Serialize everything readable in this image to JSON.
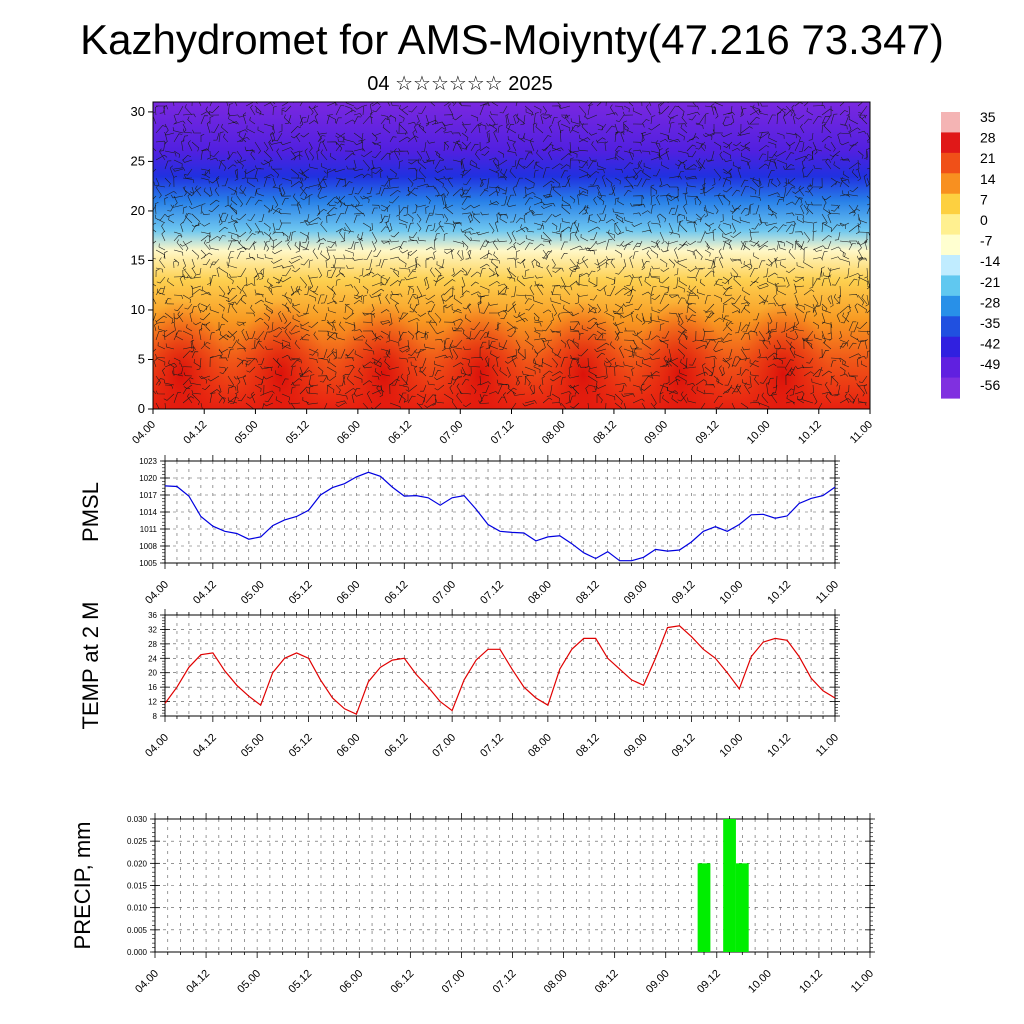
{
  "title": "Kazhydromet for AMS-Moiynty(47.216 73.347)",
  "subtitle": "04 ☆☆☆☆☆☆ 2025",
  "chart_data": [
    {
      "type": "heatmap",
      "name": "cross-section",
      "x_ticks": [
        "04.00",
        "04.12",
        "05.00",
        "05.12",
        "06.00",
        "06.12",
        "07.00",
        "07.12",
        "08.00",
        "08.12",
        "09.00",
        "09.12",
        "10.00",
        "10.12",
        "11.00"
      ],
      "y_ticks": [
        "0",
        "5",
        "10",
        "15",
        "20",
        "25",
        "30"
      ],
      "ylim": [
        0,
        31
      ],
      "colorbar": {
        "labels": [
          "35",
          "28",
          "21",
          "14",
          "7",
          "0",
          "-7",
          "-14",
          "-21",
          "-28",
          "-35",
          "-42",
          "-49",
          "-56"
        ],
        "colors": [
          "#f4b4b4",
          "#e01818",
          "#f05018",
          "#f89020",
          "#fdd040",
          "#fff090",
          "#ffffd0",
          "#c0ecff",
          "#60c8f0",
          "#2890e8",
          "#2050e0",
          "#3020e0",
          "#6020e0",
          "#8030e0"
        ]
      },
      "bands": [
        {
          "z": 0,
          "color": "#e82010"
        },
        {
          "z": 5,
          "color": "#f05818"
        },
        {
          "z": 9,
          "color": "#f89a22"
        },
        {
          "z": 13,
          "color": "#fdd050"
        },
        {
          "z": 16,
          "color": "#fff8c8"
        },
        {
          "z": 18,
          "color": "#70c8f0"
        },
        {
          "z": 21,
          "color": "#2880e8"
        },
        {
          "z": 23.5,
          "color": "#2030e0"
        },
        {
          "z": 26,
          "color": "#5020e0"
        },
        {
          "z": 31,
          "color": "#7a28e0"
        }
      ],
      "warm_times": [
        0.55,
        2.5,
        4.5,
        6.4,
        8.4,
        10.3,
        12.3
      ]
    },
    {
      "type": "line",
      "ylabel": "PMSL",
      "y_ticks": [
        "1005",
        "1008",
        "1011",
        "1014",
        "1017",
        "1020",
        "1023"
      ],
      "ylim": [
        1005,
        1023
      ],
      "x_ticks": [
        "04.00",
        "04.12",
        "05.00",
        "05.12",
        "06.00",
        "06.12",
        "07.00",
        "07.12",
        "08.00",
        "08.12",
        "09.00",
        "09.12",
        "10.00",
        "10.12",
        "11.00"
      ],
      "color": "#0000e0",
      "x": [
        0,
        1,
        2,
        3,
        4,
        5,
        6,
        7,
        8,
        9,
        10,
        11,
        12,
        13,
        14,
        15,
        16,
        17,
        18,
        19,
        20,
        21,
        22,
        23,
        24,
        25,
        26,
        27,
        28,
        29,
        30,
        31,
        32,
        33,
        34,
        35,
        36,
        37,
        38,
        39,
        40,
        41,
        42,
        43,
        44,
        45,
        46,
        47,
        48,
        49,
        50,
        51,
        52,
        53,
        54,
        55,
        56
      ],
      "values": [
        1018.6,
        1018.5,
        1016.8,
        1013.2,
        1011.5,
        1010.6,
        1010.2,
        1009.2,
        1009.6,
        1011.6,
        1012.6,
        1013.2,
        1014.3,
        1017.0,
        1018.3,
        1019.0,
        1020.2,
        1021.0,
        1020.3,
        1018.4,
        1016.8,
        1016.9,
        1016.5,
        1015.2,
        1016.5,
        1016.9,
        1014.5,
        1011.8,
        1010.6,
        1010.4,
        1010.3,
        1008.9,
        1009.6,
        1009.8,
        1008.4,
        1006.8,
        1005.8,
        1007.0,
        1005.4,
        1005.4,
        1006.0,
        1007.4,
        1007.1,
        1007.3,
        1008.7,
        1010.6,
        1011.4,
        1010.6,
        1011.8,
        1013.5,
        1013.6,
        1012.9,
        1013.3,
        1015.5,
        1016.4,
        1016.9,
        1018.4
      ]
    },
    {
      "type": "line",
      "ylabel": "TEMP at 2 M",
      "y_ticks": [
        "8",
        "12",
        "16",
        "20",
        "24",
        "28",
        "32",
        "36"
      ],
      "ylim": [
        8,
        36
      ],
      "x_ticks": [
        "04.00",
        "04.12",
        "05.00",
        "05.12",
        "06.00",
        "06.12",
        "07.00",
        "07.12",
        "08.00",
        "08.12",
        "09.00",
        "09.12",
        "10.00",
        "10.12",
        "11.00"
      ],
      "color": "#e00000",
      "x": [
        0,
        1,
        2,
        3,
        4,
        5,
        6,
        7,
        8,
        9,
        10,
        11,
        12,
        13,
        14,
        15,
        16,
        17,
        18,
        19,
        20,
        21,
        22,
        23,
        24,
        25,
        26,
        27,
        28,
        29,
        30,
        31,
        32,
        33,
        34,
        35,
        36,
        37,
        38,
        39,
        40,
        41,
        42,
        43,
        44,
        45,
        46,
        47,
        48,
        49,
        50,
        51,
        52,
        53,
        54,
        55,
        56
      ],
      "values": [
        11.5,
        16.0,
        21.5,
        25.0,
        25.5,
        20.5,
        16.5,
        13.5,
        11.0,
        20.0,
        24.0,
        25.5,
        24.0,
        18.0,
        13.0,
        10.0,
        8.5,
        17.5,
        21.5,
        23.5,
        24.0,
        19.5,
        16.0,
        12.0,
        9.5,
        18.0,
        23.5,
        26.5,
        26.5,
        21.0,
        16.0,
        13.0,
        11.0,
        21.0,
        26.5,
        29.5,
        29.5,
        24.0,
        21.0,
        18.0,
        16.5,
        24.0,
        32.5,
        33.0,
        30.0,
        26.5,
        24.0,
        20.0,
        15.5,
        24.5,
        28.5,
        29.5,
        29.0,
        24.5,
        18.5,
        15.0,
        13.0
      ]
    },
    {
      "type": "bar",
      "ylabel": "PRECIP, mm",
      "y_ticks": [
        "0.000",
        "0.005",
        "0.010",
        "0.015",
        "0.020",
        "0.025",
        "0.030"
      ],
      "ylim": [
        0,
        0.03
      ],
      "x_ticks": [
        "04.00",
        "04.12",
        "05.00",
        "05.12",
        "06.00",
        "06.12",
        "07.00",
        "07.12",
        "08.00",
        "08.12",
        "09.00",
        "09.12",
        "10.00",
        "10.12",
        "11.00"
      ],
      "color": "#00ee00",
      "bars": [
        {
          "x": 43,
          "value": 0.02
        },
        {
          "x": 45,
          "value": 0.03
        },
        {
          "x": 46,
          "value": 0.02
        }
      ]
    }
  ]
}
